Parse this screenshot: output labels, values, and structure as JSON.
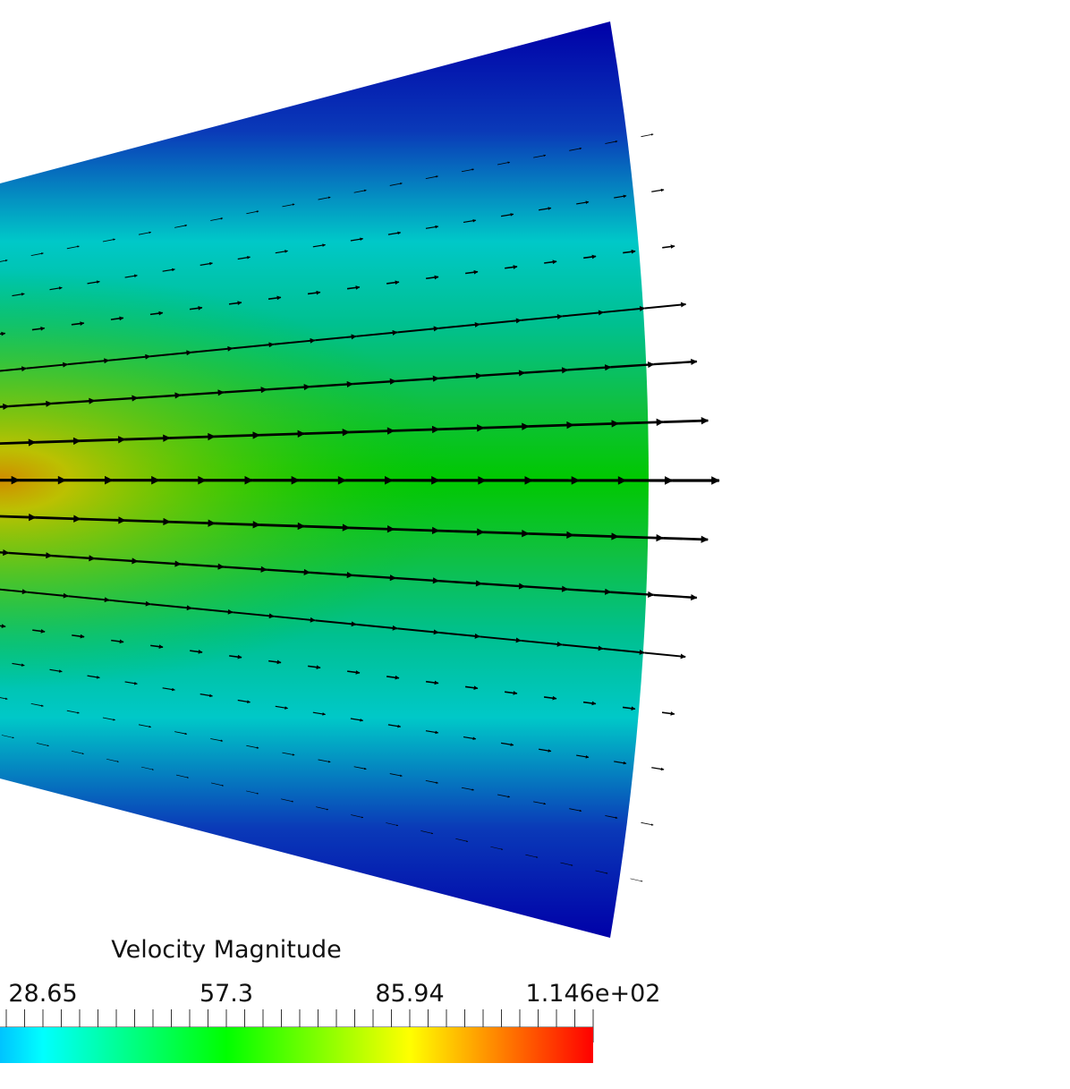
{
  "colorbar": {
    "title": "Velocity Magnitude",
    "labels": [
      "28.65",
      "57.3",
      "85.94",
      "1.146e+02"
    ]
  }
}
